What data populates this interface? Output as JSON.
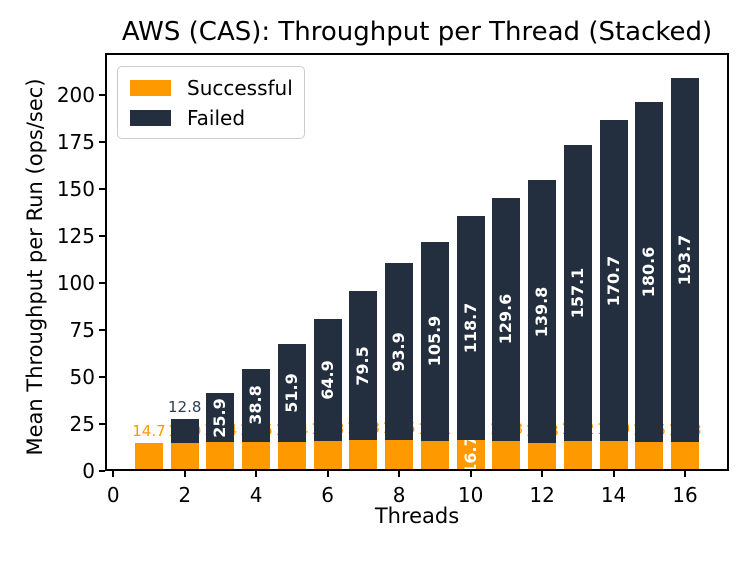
{
  "title": "AWS (CAS): Throughput per Thread (Stacked)",
  "colors": {
    "successful": "#FF9900",
    "failed": "#232F3E",
    "failed_edge_label": "#2e3d52",
    "axis": "#000000",
    "legend_border": "#cccccc",
    "background": "#ffffff"
  },
  "chart_data": {
    "type": "bar",
    "stacked": true,
    "title": "AWS (CAS): Throughput per Thread (Stacked)",
    "xlabel": "Threads",
    "ylabel": "Mean Throughput per Run (ops/sec)",
    "x": [
      1,
      2,
      3,
      4,
      5,
      6,
      7,
      8,
      9,
      10,
      11,
      12,
      13,
      14,
      15,
      16
    ],
    "series": [
      {
        "name": "Successful",
        "color": "#FF9900",
        "label_color": "#FF9900",
        "values": [
          14.7,
          14.9,
          15.4,
          15.5,
          15.4,
          15.8,
          16.3,
          16.5,
          16.1,
          16.7,
          15.8,
          14.8,
          16.2,
          15.9,
          15.5,
          15.3
        ],
        "label_styles": [
          "edge",
          "edge",
          "edge",
          "edge",
          "edge",
          "edge",
          "edge",
          "edge",
          "edge",
          "inside",
          "edge",
          "edge",
          "edge",
          "edge",
          "edge",
          "edge"
        ]
      },
      {
        "name": "Failed",
        "color": "#232F3E",
        "label_color": "#2e3d52",
        "values": [
          0,
          12.8,
          25.9,
          38.8,
          51.9,
          64.9,
          79.5,
          93.9,
          105.9,
          118.7,
          129.6,
          139.8,
          157.1,
          170.7,
          180.6,
          193.7
        ],
        "label_styles": [
          "none",
          "edge",
          "inside",
          "inside",
          "inside",
          "inside",
          "inside",
          "inside",
          "inside",
          "inside",
          "inside",
          "inside",
          "inside",
          "inside",
          "inside",
          "inside"
        ]
      }
    ],
    "xticks": [
      0,
      2,
      4,
      6,
      8,
      10,
      12,
      14,
      16
    ],
    "yticks": [
      0,
      25,
      50,
      75,
      100,
      125,
      150,
      175,
      200
    ],
    "xlim": [
      -0.23,
      17.23
    ],
    "ylim": [
      0,
      222.3
    ],
    "grid": false,
    "legend_position": "upper left"
  }
}
